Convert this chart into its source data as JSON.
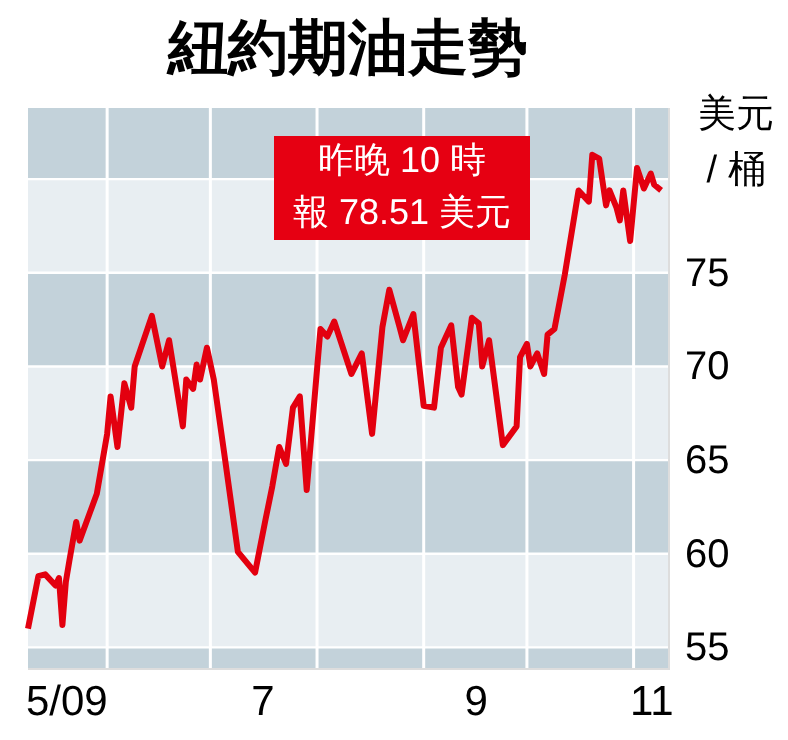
{
  "chart_data": {
    "type": "line",
    "title": "紐約期油走勢",
    "ylabel": "美元\n/ 桶",
    "annotations": [
      "昨晚 10 時",
      "報 78.51 美元"
    ],
    "x": [
      "2009-05-09",
      "2009-05-12",
      "2009-05-14",
      "2009-05-17",
      "2009-05-18",
      "2009-05-19",
      "2009-05-20",
      "2009-05-21",
      "2009-05-23",
      "2009-05-24",
      "2009-05-27",
      "2009-05-29",
      "2009-06-01",
      "2009-06-02",
      "2009-06-04",
      "2009-06-06",
      "2009-06-08",
      "2009-06-09",
      "2009-06-14",
      "2009-06-17",
      "2009-06-19",
      "2009-06-23",
      "2009-06-24",
      "2009-06-26",
      "2009-06-27",
      "2009-06-28",
      "2009-06-30",
      "2009-07-02",
      "2009-07-05",
      "2009-07-09",
      "2009-07-14",
      "2009-07-17",
      "2009-07-19",
      "2009-07-21",
      "2009-07-23",
      "2009-07-25",
      "2009-07-27",
      "2009-07-29",
      "2009-08-02",
      "2009-08-04",
      "2009-08-06",
      "2009-08-11",
      "2009-08-14",
      "2009-08-17",
      "2009-08-20",
      "2009-08-22",
      "2009-08-25",
      "2009-08-26",
      "2009-08-29",
      "2009-09-01",
      "2009-09-04",
      "2009-09-06",
      "2009-09-09",
      "2009-09-11",
      "2009-09-12",
      "2009-09-15",
      "2009-09-17",
      "2009-09-18",
      "2009-09-20",
      "2009-09-24",
      "2009-09-28",
      "2009-09-29",
      "2009-10-01",
      "2009-10-02",
      "2009-10-04",
      "2009-10-06",
      "2009-10-07",
      "2009-10-09",
      "2009-10-12",
      "2009-10-16",
      "2009-10-19",
      "2009-10-20",
      "2009-10-22",
      "2009-10-24",
      "2009-10-25",
      "2009-10-27",
      "2009-10-28",
      "2009-10-29",
      "2009-10-31",
      "2009-11-02",
      "2009-11-04",
      "2009-11-06",
      "2009-11-07",
      "2009-11-09"
    ],
    "series": [
      {
        "color": "#e3000f",
        "values": [
          56.0,
          58.8,
          58.9,
          58.3,
          58.7,
          56.2,
          58.5,
          59.6,
          61.7,
          60.7,
          62.2,
          63.2,
          66.4,
          68.4,
          65.7,
          69.1,
          67.8,
          70.0,
          72.7,
          70.0,
          71.4,
          66.8,
          69.3,
          68.8,
          70.1,
          69.3,
          71.0,
          69.3,
          65.4,
          60.1,
          59.0,
          61.8,
          63.6,
          65.7,
          64.8,
          67.8,
          68.4,
          63.4,
          72.0,
          71.6,
          72.4,
          69.6,
          70.7,
          66.4,
          72.1,
          74.1,
          72.1,
          71.4,
          72.8,
          67.9,
          67.8,
          71.0,
          72.2,
          68.9,
          68.5,
          72.6,
          72.3,
          70.0,
          71.4,
          65.8,
          66.8,
          70.5,
          71.2,
          70.0,
          70.7,
          69.6,
          71.7,
          72.0,
          74.9,
          79.4,
          78.8,
          81.3,
          81.1,
          78.6,
          79.4,
          78.5,
          77.8,
          79.4,
          76.7,
          80.6,
          79.5,
          80.3,
          79.7,
          79.4
        ]
      }
    ],
    "xlim": [
      "2009-05-09",
      "2009-11-11"
    ],
    "xticks": [
      {
        "value": "2009-05-20",
        "label": "5/09"
      },
      {
        "value": "2009-06-01",
        "label": null
      },
      {
        "value": "2009-07-01",
        "label": null
      },
      {
        "value": "2009-07-16",
        "label": "7"
      },
      {
        "value": "2009-08-01",
        "label": null
      },
      {
        "value": "2009-09-01",
        "label": null
      },
      {
        "value": "2009-09-16",
        "label": "9"
      },
      {
        "value": "2009-10-01",
        "label": null
      },
      {
        "value": "2009-11-01",
        "label": null
      },
      {
        "value": "2009-11-06",
        "label": "11"
      }
    ],
    "ylim": [
      53.9,
      83.8
    ],
    "yticks": [
      55,
      60,
      65,
      70,
      75,
      {
        "value": 80,
        "label": null
      }
    ],
    "grid": true,
    "line_style": "solid",
    "marker": "none"
  }
}
